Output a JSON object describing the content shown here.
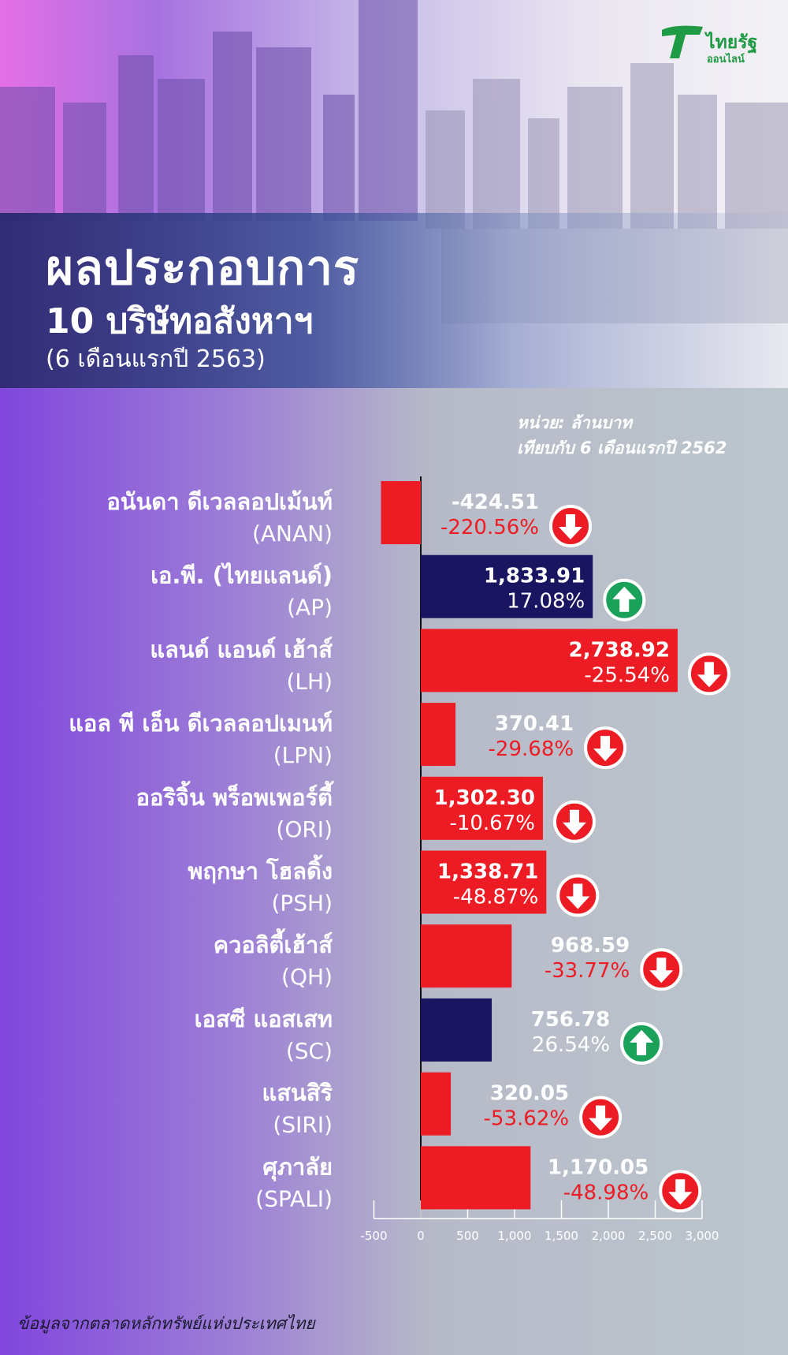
{
  "brand": {
    "name": "ไทยรัฐ",
    "sub": "ออนไลน์",
    "color": "#1f9a45"
  },
  "header": {
    "title": "ผลประกอบการ",
    "subtitle": "10 บริษัทอสังหาฯ",
    "period": "(6 เดือนแรกปี 2563)"
  },
  "notes": {
    "unit": "หน่วย: ล้านบาท",
    "compare": "เทียบกับ 6 เดือนแรกปี 2562"
  },
  "footer": {
    "source": "ข้อมูลจากตลาดหลักทรัพย์แห่งประเทศไทย"
  },
  "colors": {
    "increase": "#1a1560",
    "decrease": "#ed1c24",
    "up_arrow": "#1aa15a",
    "down_arrow": "#ed1c24"
  },
  "chart_data": {
    "type": "bar",
    "orientation": "horizontal",
    "xlim": [
      -500,
      3000
    ],
    "xticks": [
      -500,
      0,
      500,
      1000,
      1500,
      2000,
      2500,
      3000
    ],
    "xtick_labels": [
      "-500",
      "0",
      "500",
      "1,000",
      "1,500",
      "2,000",
      "2,500",
      "3,000"
    ],
    "categories": [
      {
        "name": "อนันดา ดีเวลลอปเม้นท์",
        "code": "(ANAN)",
        "value": -424.51,
        "value_label": "-424.51",
        "change": -220.56,
        "change_label": "-220.56%",
        "direction": "down"
      },
      {
        "name": "เอ.พี. (ไทยแลนด์)",
        "code": "(AP)",
        "value": 1833.91,
        "value_label": "1,833.91",
        "change": 17.08,
        "change_label": "17.08%",
        "direction": "up"
      },
      {
        "name": "แลนด์ แอนด์ เฮ้าส์",
        "code": "(LH)",
        "value": 2738.92,
        "value_label": "2,738.92",
        "change": -25.54,
        "change_label": "-25.54%",
        "direction": "down"
      },
      {
        "name": "แอล พี เอ็น ดีเวลลอปเมนท์",
        "code": "(LPN)",
        "value": 370.41,
        "value_label": "370.41",
        "change": -29.68,
        "change_label": "-29.68%",
        "direction": "down"
      },
      {
        "name": "ออริจิ้น พร็อพเพอร์ตี้",
        "code": "(ORI)",
        "value": 1302.3,
        "value_label": "1,302.30",
        "change": -10.67,
        "change_label": "-10.67%",
        "direction": "down"
      },
      {
        "name": "พฤกษา โฮลดิ้ง",
        "code": "(PSH)",
        "value": 1338.71,
        "value_label": "1,338.71",
        "change": -48.87,
        "change_label": "-48.87%",
        "direction": "down"
      },
      {
        "name": "ควอลิตี้เฮ้าส์",
        "code": "(QH)",
        "value": 968.59,
        "value_label": "968.59",
        "change": -33.77,
        "change_label": "-33.77%",
        "direction": "down"
      },
      {
        "name": "เอสซี แอสเสท",
        "code": "(SC)",
        "value": 756.78,
        "value_label": "756.78",
        "change": 26.54,
        "change_label": "26.54%",
        "direction": "up"
      },
      {
        "name": "แสนสิริ",
        "code": "(SIRI)",
        "value": 320.05,
        "value_label": "320.05",
        "change": -53.62,
        "change_label": "-53.62%",
        "direction": "down"
      },
      {
        "name": "ศุภาลัย",
        "code": "(SPALI)",
        "value": 1170.05,
        "value_label": "1,170.05",
        "change": -48.98,
        "change_label": "-48.98%",
        "direction": "down"
      }
    ]
  }
}
